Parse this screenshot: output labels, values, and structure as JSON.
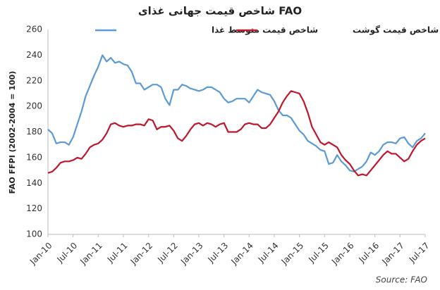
{
  "chart_data": {
    "type": "line",
    "title": "شاخص قیمت جهانی غذای FAO",
    "y_label": "FAO FFPI (2002-2004 = 100)",
    "source": "Source: FAO",
    "categories": [
      "Jan-10",
      null,
      null,
      null,
      null,
      null,
      "Jul-10",
      null,
      null,
      null,
      null,
      null,
      "Jan-11",
      null,
      null,
      null,
      null,
      null,
      "Jul-11",
      null,
      null,
      null,
      null,
      null,
      "Jan-12",
      null,
      null,
      null,
      null,
      null,
      "Jul-12",
      null,
      null,
      null,
      null,
      null,
      "Jan-13",
      null,
      null,
      null,
      null,
      null,
      "Jul-13",
      null,
      null,
      null,
      null,
      null,
      "Jan-14",
      null,
      null,
      null,
      null,
      null,
      "Jul-14",
      null,
      null,
      null,
      null,
      null,
      "Jan-15",
      null,
      null,
      null,
      null,
      null,
      "Jul-15",
      null,
      null,
      null,
      null,
      null,
      "Jan-16",
      null,
      null,
      null,
      null,
      null,
      "Jul-16",
      null,
      null,
      null,
      null,
      null,
      "Jan-17",
      null,
      null,
      null,
      null,
      null,
      "Jul-17"
    ],
    "series": [
      {
        "name": "شاخص قیمت متوسط غذا",
        "color": "#5b9bd5",
        "values": [
          182,
          179,
          171,
          172,
          172,
          170,
          176,
          186,
          196,
          208,
          216,
          224,
          231,
          240,
          235,
          238,
          234,
          235,
          233,
          232,
          227,
          218,
          218,
          213,
          215,
          217,
          217,
          215,
          206,
          201,
          213,
          213,
          217,
          216,
          214,
          213,
          212,
          213,
          215,
          215,
          213,
          211,
          206,
          203,
          204,
          206,
          206,
          206,
          203,
          208,
          213,
          211,
          210,
          209,
          204,
          197,
          193,
          193,
          191,
          186,
          181,
          178,
          173,
          171,
          169,
          166,
          165,
          155,
          156,
          162,
          157,
          154,
          150,
          149,
          151,
          153,
          157,
          164,
          162,
          165,
          170,
          172,
          172,
          171,
          175,
          176,
          171,
          168,
          173,
          175,
          179
        ]
      },
      {
        "name": "شاخص قیمت گوشت",
        "color": "#c0162c",
        "values": [
          148,
          149,
          152,
          156,
          157,
          157,
          158,
          160,
          159,
          163,
          168,
          170,
          171,
          174,
          179,
          186,
          187,
          185,
          184,
          185,
          185,
          186,
          186,
          185,
          190,
          189,
          182,
          184,
          184,
          185,
          181,
          175,
          173,
          177,
          182,
          186,
          187,
          185,
          187,
          186,
          184,
          186,
          187,
          180,
          180,
          180,
          182,
          186,
          187,
          186,
          186,
          183,
          183,
          186,
          191,
          196,
          203,
          208,
          212,
          211,
          210,
          204,
          195,
          184,
          178,
          172,
          170,
          172,
          170,
          168,
          162,
          158,
          155,
          150,
          146,
          147,
          146,
          150,
          154,
          158,
          162,
          165,
          163,
          163,
          160,
          157,
          159,
          165,
          170,
          173,
          175
        ]
      }
    ],
    "ylim": [
      100,
      260
    ],
    "yticks": [
      100,
      120,
      140,
      160,
      180,
      200,
      220,
      240,
      260
    ],
    "grid": false
  }
}
